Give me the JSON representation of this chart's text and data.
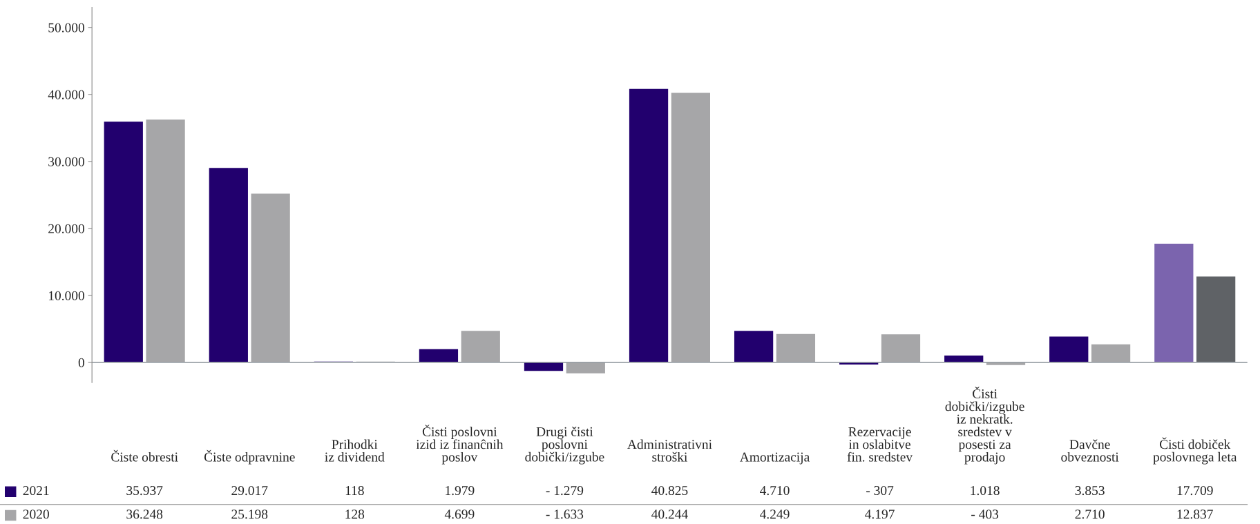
{
  "chart_data": {
    "type": "bar",
    "categories": [
      "Čiste obresti",
      "Čiste odpravnine",
      "Prihodki\niz dividend",
      "Čisti poslovni\nizid iz finanĉnih\nposlov",
      "Drugi čisti\nposlovni\ndobički/izgube",
      "Administrativni\nstroški",
      "Amortizacija",
      "Rezervacije\nin oslabitve\nfin. sredstev",
      "Čisti\ndobički/izgube\niz nekratk.\nsredstev v\nposesti za\nprodajo",
      "Davčne\nobveznosti",
      "Čisti dobiček\nposlovnega leta"
    ],
    "series": [
      {
        "name": "2021",
        "color": "#22006e",
        "colors": [
          "#22006e",
          "#22006e",
          "#22006e",
          "#22006e",
          "#22006e",
          "#22006e",
          "#22006e",
          "#22006e",
          "#22006e",
          "#22006e",
          "#7b64ae"
        ],
        "values": [
          35937,
          29017,
          118,
          1979,
          -1279,
          40825,
          4710,
          -307,
          1018,
          3853,
          17709
        ],
        "value_labels": [
          "35.937",
          "29.017",
          "118",
          "1.979",
          "- 1.279",
          "40.825",
          "4.710",
          "- 307",
          "1.018",
          "3.853",
          "17.709"
        ]
      },
      {
        "name": "2020",
        "color": "#a6a6a8",
        "colors": [
          "#a6a6a8",
          "#a6a6a8",
          "#a6a6a8",
          "#a6a6a8",
          "#a6a6a8",
          "#a6a6a8",
          "#a6a6a8",
          "#a6a6a8",
          "#a6a6a8",
          "#a6a6a8",
          "#5f6266"
        ],
        "values": [
          36248,
          25198,
          128,
          4699,
          -1633,
          40244,
          4249,
          4197,
          -403,
          2710,
          12837
        ],
        "value_labels": [
          "36.248",
          "25.198",
          "128",
          "4.699",
          "- 1.633",
          "40.244",
          "4.249",
          "4.197",
          "- 403",
          "2.710",
          "12.837"
        ]
      }
    ],
    "ylim": [
      -3000,
      53000
    ],
    "yticks": [
      {
        "value": 0,
        "label": "0"
      },
      {
        "value": 10000,
        "label": "10.000"
      },
      {
        "value": 20000,
        "label": "20.000"
      },
      {
        "value": 30000,
        "label": "30.000"
      },
      {
        "value": 40000,
        "label": "40.000"
      },
      {
        "value": 50000,
        "label": "50.000"
      }
    ],
    "grid": false,
    "legend": "bottom left"
  }
}
